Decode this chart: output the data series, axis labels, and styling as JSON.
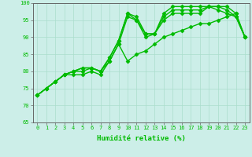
{
  "xlabel": "Humidité relative (%)",
  "xlim": [
    -0.5,
    23.5
  ],
  "ylim": [
    65,
    100
  ],
  "xticks": [
    0,
    1,
    2,
    3,
    4,
    5,
    6,
    7,
    8,
    9,
    10,
    11,
    12,
    13,
    14,
    15,
    16,
    17,
    18,
    19,
    20,
    21,
    22,
    23
  ],
  "yticks": [
    65,
    70,
    75,
    80,
    85,
    90,
    95,
    100
  ],
  "background_color": "#cceee8",
  "grid_color": "#aaddcc",
  "line_color": "#00bb00",
  "series": [
    [
      73,
      75,
      77,
      79,
      80,
      81,
      81,
      80,
      84,
      89,
      97,
      96,
      91,
      91,
      97,
      99,
      99,
      99,
      99,
      99,
      99,
      99,
      97,
      90
    ],
    [
      73,
      75,
      77,
      79,
      80,
      81,
      81,
      80,
      84,
      89,
      97,
      95,
      91,
      91,
      96,
      98,
      98,
      98,
      98,
      99,
      99,
      98,
      96,
      90
    ],
    [
      73,
      75,
      77,
      79,
      80,
      80,
      81,
      80,
      83,
      88,
      96,
      95,
      90,
      91,
      95,
      97,
      97,
      97,
      97,
      99,
      98,
      97,
      96,
      90
    ],
    [
      73,
      75,
      77,
      79,
      79,
      79,
      80,
      79,
      83,
      88,
      83,
      85,
      86,
      88,
      90,
      91,
      92,
      93,
      94,
      94,
      95,
      96,
      97,
      90
    ]
  ],
  "marker": "D",
  "marker_size": 2.5,
  "line_width": 1.0,
  "tick_fontsize": 5.0,
  "xlabel_fontsize": 6.5
}
